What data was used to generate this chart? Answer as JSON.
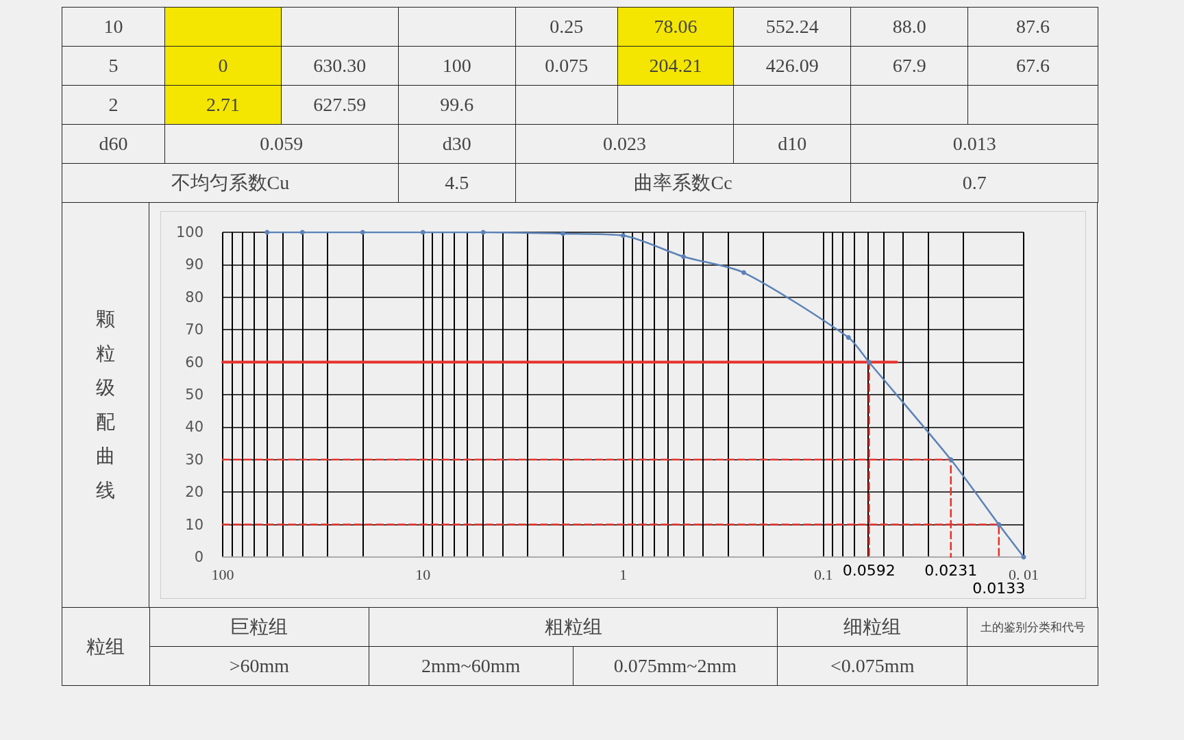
{
  "chart_data": {
    "type": "line",
    "ylabel": "颗粒级配曲线",
    "xlim": [
      100,
      0.01
    ],
    "xticks": [
      100,
      {
        "value": 90,
        "label": null
      },
      {
        "value": 80,
        "label": null
      },
      {
        "value": 70,
        "label": null
      },
      {
        "value": 60,
        "label": null
      },
      {
        "value": 50,
        "label": null
      },
      {
        "value": 40,
        "label": null
      },
      {
        "value": 30,
        "label": null
      },
      {
        "value": 20,
        "label": null
      },
      10,
      {
        "value": 9,
        "label": null
      },
      {
        "value": 8,
        "label": null
      },
      {
        "value": 7,
        "label": null
      },
      {
        "value": 6,
        "label": null
      },
      {
        "value": 5,
        "label": null
      },
      {
        "value": 4,
        "label": null
      },
      {
        "value": 3,
        "label": null
      },
      {
        "value": 2,
        "label": null
      },
      1,
      {
        "value": 0.9,
        "label": null
      },
      {
        "value": 0.8,
        "label": null
      },
      {
        "value": 0.7,
        "label": null
      },
      {
        "value": 0.6,
        "label": null
      },
      {
        "value": 0.5,
        "label": null
      },
      {
        "value": 0.4,
        "label": null
      },
      {
        "value": 0.3,
        "label": null
      },
      {
        "value": 0.2,
        "label": null
      },
      0.1,
      {
        "value": 0.09,
        "label": null
      },
      {
        "value": 0.08,
        "label": null
      },
      {
        "value": 0.07,
        "label": null
      },
      {
        "value": 0.06,
        "label": null
      },
      {
        "value": 0.05,
        "label": null
      },
      {
        "value": 0.04,
        "label": null
      },
      {
        "value": 0.03,
        "label": null
      },
      {
        "value": 0.02,
        "label": null
      },
      {
        "value": 0.01,
        "label": "0. 01"
      }
    ],
    "ylim": [
      0,
      100
    ],
    "yticks": [
      0,
      10,
      20,
      30,
      40,
      50,
      60,
      70,
      80,
      90,
      100
    ],
    "log": "x",
    "grid": true,
    "series": [
      {
        "color": "#5b82b8",
        "marker": "circle",
        "line_style": "solid",
        "x": [
          60,
          40,
          20,
          10,
          5,
          2,
          1,
          0.5,
          0.25,
          0.075,
          0.0592,
          0.0231,
          0.0133,
          0.01
        ],
        "values": [
          100,
          100,
          100,
          100,
          100,
          99.6,
          99,
          92.5,
          87.6,
          67.6,
          60,
          30,
          10,
          0
        ]
      },
      {
        "color": "#e8312a",
        "marker": "none",
        "line_style": "solid",
        "x": [
          100,
          0.043
        ],
        "values": [
          60,
          60
        ]
      },
      {
        "color": "#c0281f",
        "marker": "none",
        "line_style": "dashed",
        "x": [
          0.0592,
          0.0592
        ],
        "values": [
          60,
          0
        ]
      },
      {
        "color": "#e8312a",
        "marker": "none",
        "line_style": "dashed",
        "x": [
          100,
          0.0231,
          0.0231
        ],
        "values": [
          30,
          30,
          0
        ]
      },
      {
        "color": "#e8312a",
        "marker": "none",
        "line_style": "dashed",
        "x": [
          100,
          0.0133,
          0.0133
        ],
        "values": [
          10,
          10,
          0
        ]
      }
    ],
    "annotations": [
      {
        "text": "0.0592",
        "x": 0.0592,
        "y": 0
      },
      {
        "text": "0.0231",
        "x": 0.0231,
        "y": 0
      },
      {
        "text": "0.0133",
        "x": 0.0133,
        "y": 0
      },
      "10",
      "0.25",
      "78.06",
      "552.24",
      "88.0",
      "87.6",
      "5",
      "0",
      "630.30",
      "100",
      "0.075",
      "204.21",
      "426.09",
      "67.9",
      "67.6",
      "2",
      "2.71",
      "627.59",
      "99.6",
      "d60",
      "0.059",
      "d30",
      "0.023",
      "d10",
      "0.013",
      "不均匀系数Cu",
      "4.5",
      "曲率系数Cc",
      "0.7",
      "粒组",
      "巨粒组",
      "粗粒组",
      "细粒组",
      "土的鉴别分类和代号",
      ">60mm",
      "2mm~60mm",
      "0.075mm~2mm",
      "<0.075mm"
    ]
  }
}
